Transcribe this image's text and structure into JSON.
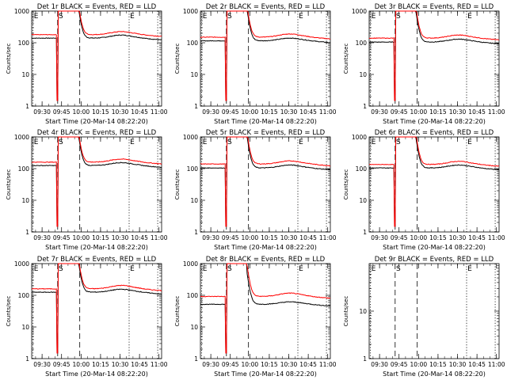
{
  "chart_data": [
    {
      "type": "line",
      "title": "Det 1r BLACK = Events, RED = LLD",
      "ylabel": "Counts/sec",
      "xlabel": "Start Time (20-Mar-14 08:22:20)",
      "x_ticks": [
        "09:30",
        "09:45",
        "10:00",
        "10:15",
        "10:30",
        "10:45",
        "11:00"
      ],
      "y_ticks": [
        "1",
        "10",
        "100",
        "1000"
      ],
      "ylim": [
        1,
        1000
      ],
      "y_scale": "log",
      "markers": [
        {
          "label": "E",
          "x": "09:23",
          "style": "dotted"
        },
        {
          "label": "S",
          "x": "09:42",
          "style": "dashed"
        },
        {
          "label": "",
          "x": "09:59",
          "style": "dashed"
        },
        {
          "label": "E",
          "x": "10:37",
          "style": "dotted"
        },
        {
          "label": "",
          "x": "10:59",
          "style": "dotted"
        }
      ],
      "series": [
        {
          "name": "Events",
          "color": "#000000",
          "base": 140,
          "bump": 35
        },
        {
          "name": "LLD",
          "color": "#ff0000",
          "base": 180,
          "bump": 45
        }
      ]
    },
    {
      "type": "line",
      "title": "Det 2r BLACK = Events, RED = LLD",
      "ylabel": "Counts/sec",
      "xlabel": "Start Time (20-Mar-14 08:22:20)",
      "x_ticks": [
        "09:30",
        "09:45",
        "10:00",
        "10:15",
        "10:30",
        "10:45",
        "11:00"
      ],
      "y_ticks": [
        "1",
        "10",
        "100",
        "1000"
      ],
      "ylim": [
        1,
        1000
      ],
      "y_scale": "log",
      "markers": [
        {
          "label": "E",
          "x": "09:23",
          "style": "dotted"
        },
        {
          "label": "S",
          "x": "09:42",
          "style": "dashed"
        },
        {
          "label": "",
          "x": "09:59",
          "style": "dashed"
        },
        {
          "label": "E",
          "x": "10:37",
          "style": "dotted"
        },
        {
          "label": "",
          "x": "10:59",
          "style": "dotted"
        }
      ],
      "series": [
        {
          "name": "Events",
          "color": "#000000",
          "base": 115,
          "bump": 25
        },
        {
          "name": "LLD",
          "color": "#ff0000",
          "base": 150,
          "bump": 40
        }
      ]
    },
    {
      "type": "line",
      "title": "Det 3r BLACK = Events, RED = LLD",
      "ylabel": "Counts/sec",
      "xlabel": "Start Time (20-Mar-14 08:22:20)",
      "x_ticks": [
        "09:30",
        "09:45",
        "10:00",
        "10:15",
        "10:30",
        "10:45",
        "11:00"
      ],
      "y_ticks": [
        "1",
        "10",
        "100",
        "1000"
      ],
      "ylim": [
        1,
        1000
      ],
      "y_scale": "log",
      "markers": [
        {
          "label": "E",
          "x": "09:23",
          "style": "dotted"
        },
        {
          "label": "S",
          "x": "09:42",
          "style": "dashed"
        },
        {
          "label": "",
          "x": "09:59",
          "style": "dashed"
        },
        {
          "label": "E",
          "x": "10:37",
          "style": "dotted"
        },
        {
          "label": "",
          "x": "10:59",
          "style": "dotted"
        }
      ],
      "series": [
        {
          "name": "Events",
          "color": "#000000",
          "base": 105,
          "bump": 25
        },
        {
          "name": "LLD",
          "color": "#ff0000",
          "base": 140,
          "bump": 35
        }
      ]
    },
    {
      "type": "line",
      "title": "Det 4r BLACK = Events, RED = LLD",
      "ylabel": "Counts/sec",
      "xlabel": "Start Time (20-Mar-14 08:22:20)",
      "x_ticks": [
        "09:30",
        "09:45",
        "10:00",
        "10:15",
        "10:30",
        "10:45",
        "11:00"
      ],
      "y_ticks": [
        "1",
        "10",
        "100",
        "1000"
      ],
      "ylim": [
        1,
        1000
      ],
      "y_scale": "log",
      "markers": [
        {
          "label": "E",
          "x": "09:23",
          "style": "dotted"
        },
        {
          "label": "S",
          "x": "09:42",
          "style": "dashed"
        },
        {
          "label": "",
          "x": "09:59",
          "style": "dashed"
        },
        {
          "label": "E",
          "x": "10:37",
          "style": "dotted"
        },
        {
          "label": "",
          "x": "10:59",
          "style": "dotted"
        }
      ],
      "series": [
        {
          "name": "Events",
          "color": "#000000",
          "base": 125,
          "bump": 30
        },
        {
          "name": "LLD",
          "color": "#ff0000",
          "base": 160,
          "bump": 40
        }
      ]
    },
    {
      "type": "line",
      "title": "Det 5r BLACK = Events, RED = LLD",
      "ylabel": "Counts/sec",
      "xlabel": "Start Time (20-Mar-14 08:22:20)",
      "x_ticks": [
        "09:30",
        "09:45",
        "10:00",
        "10:15",
        "10:30",
        "10:45",
        "11:00"
      ],
      "y_ticks": [
        "1",
        "10",
        "100",
        "1000"
      ],
      "ylim": [
        1,
        1000
      ],
      "y_scale": "log",
      "markers": [
        {
          "label": "E",
          "x": "09:23",
          "style": "dotted"
        },
        {
          "label": "S",
          "x": "09:42",
          "style": "dashed"
        },
        {
          "label": "",
          "x": "09:59",
          "style": "dashed"
        },
        {
          "label": "E",
          "x": "10:37",
          "style": "dotted"
        },
        {
          "label": "",
          "x": "10:59",
          "style": "dotted"
        }
      ],
      "series": [
        {
          "name": "Events",
          "color": "#000000",
          "base": 105,
          "bump": 25
        },
        {
          "name": "LLD",
          "color": "#ff0000",
          "base": 140,
          "bump": 35
        }
      ]
    },
    {
      "type": "line",
      "title": "Det 6r BLACK = Events, RED = LLD",
      "ylabel": "Counts/sec",
      "xlabel": "Start Time (20-Mar-14 08:22:20)",
      "x_ticks": [
        "09:30",
        "09:45",
        "10:00",
        "10:15",
        "10:30",
        "10:45",
        "11:00"
      ],
      "y_ticks": [
        "1",
        "10",
        "100",
        "1000"
      ],
      "ylim": [
        1,
        1000
      ],
      "y_scale": "log",
      "markers": [
        {
          "label": "E",
          "x": "09:23",
          "style": "dotted"
        },
        {
          "label": "S",
          "x": "09:42",
          "style": "dashed"
        },
        {
          "label": "",
          "x": "09:59",
          "style": "dashed"
        },
        {
          "label": "E",
          "x": "10:37",
          "style": "dotted"
        },
        {
          "label": "",
          "x": "10:59",
          "style": "dotted"
        }
      ],
      "series": [
        {
          "name": "Events",
          "color": "#000000",
          "base": 105,
          "bump": 25
        },
        {
          "name": "LLD",
          "color": "#ff0000",
          "base": 135,
          "bump": 35
        }
      ]
    },
    {
      "type": "line",
      "title": "Det 7r BLACK = Events, RED = LLD",
      "ylabel": "Counts/sec",
      "xlabel": "Start Time (20-Mar-14 08:22:20)",
      "x_ticks": [
        "09:30",
        "09:45",
        "10:00",
        "10:15",
        "10:30",
        "10:45",
        "11:00"
      ],
      "y_ticks": [
        "1",
        "10",
        "100",
        "1000"
      ],
      "ylim": [
        1,
        1000
      ],
      "y_scale": "log",
      "markers": [
        {
          "label": "E",
          "x": "09:23",
          "style": "dotted"
        },
        {
          "label": "S",
          "x": "09:42",
          "style": "dashed"
        },
        {
          "label": "",
          "x": "09:59",
          "style": "dashed"
        },
        {
          "label": "E",
          "x": "10:37",
          "style": "dotted"
        },
        {
          "label": "",
          "x": "10:59",
          "style": "dotted"
        }
      ],
      "series": [
        {
          "name": "Events",
          "color": "#000000",
          "base": 125,
          "bump": 30
        },
        {
          "name": "LLD",
          "color": "#ff0000",
          "base": 160,
          "bump": 45
        }
      ]
    },
    {
      "type": "line",
      "title": "Det 8r BLACK = Events, RED = LLD",
      "ylabel": "Counts/sec",
      "xlabel": "Start Time (20-Mar-14 08:22:20)",
      "x_ticks": [
        "09:30",
        "09:45",
        "10:00",
        "10:15",
        "10:30",
        "10:45",
        "11:00"
      ],
      "y_ticks": [
        "1",
        "10",
        "100",
        "1000"
      ],
      "ylim": [
        1,
        1000
      ],
      "y_scale": "log",
      "markers": [
        {
          "label": "E",
          "x": "09:23",
          "style": "dotted"
        },
        {
          "label": "S",
          "x": "09:42",
          "style": "dashed"
        },
        {
          "label": "",
          "x": "09:59",
          "style": "dashed"
        },
        {
          "label": "E",
          "x": "10:37",
          "style": "dotted"
        },
        {
          "label": "",
          "x": "10:59",
          "style": "dotted"
        }
      ],
      "series": [
        {
          "name": "Events",
          "color": "#000000",
          "base": 52,
          "bump": 10
        },
        {
          "name": "LLD",
          "color": "#ff0000",
          "base": 92,
          "bump": 25
        }
      ]
    },
    {
      "type": "line",
      "title": "Det 9r BLACK = Events, RED = LLD",
      "ylabel": "Counts/sec",
      "xlabel": "Start Time (20-Mar-14 08:22:20)",
      "x_ticks": [
        "09:30",
        "09:45",
        "10:00",
        "10:15",
        "10:30",
        "10:45",
        "11:00"
      ],
      "y_ticks": [
        "1",
        "10"
      ],
      "ylim": [
        1,
        100
      ],
      "y_scale": "log",
      "markers": [
        {
          "label": "E",
          "x": "09:23",
          "style": "dotted"
        },
        {
          "label": "S",
          "x": "09:42",
          "style": "dashed"
        },
        {
          "label": "",
          "x": "09:59",
          "style": "dashed"
        },
        {
          "label": "E",
          "x": "10:37",
          "style": "dotted"
        },
        {
          "label": "",
          "x": "10:59",
          "style": "dotted"
        }
      ],
      "series": []
    }
  ]
}
